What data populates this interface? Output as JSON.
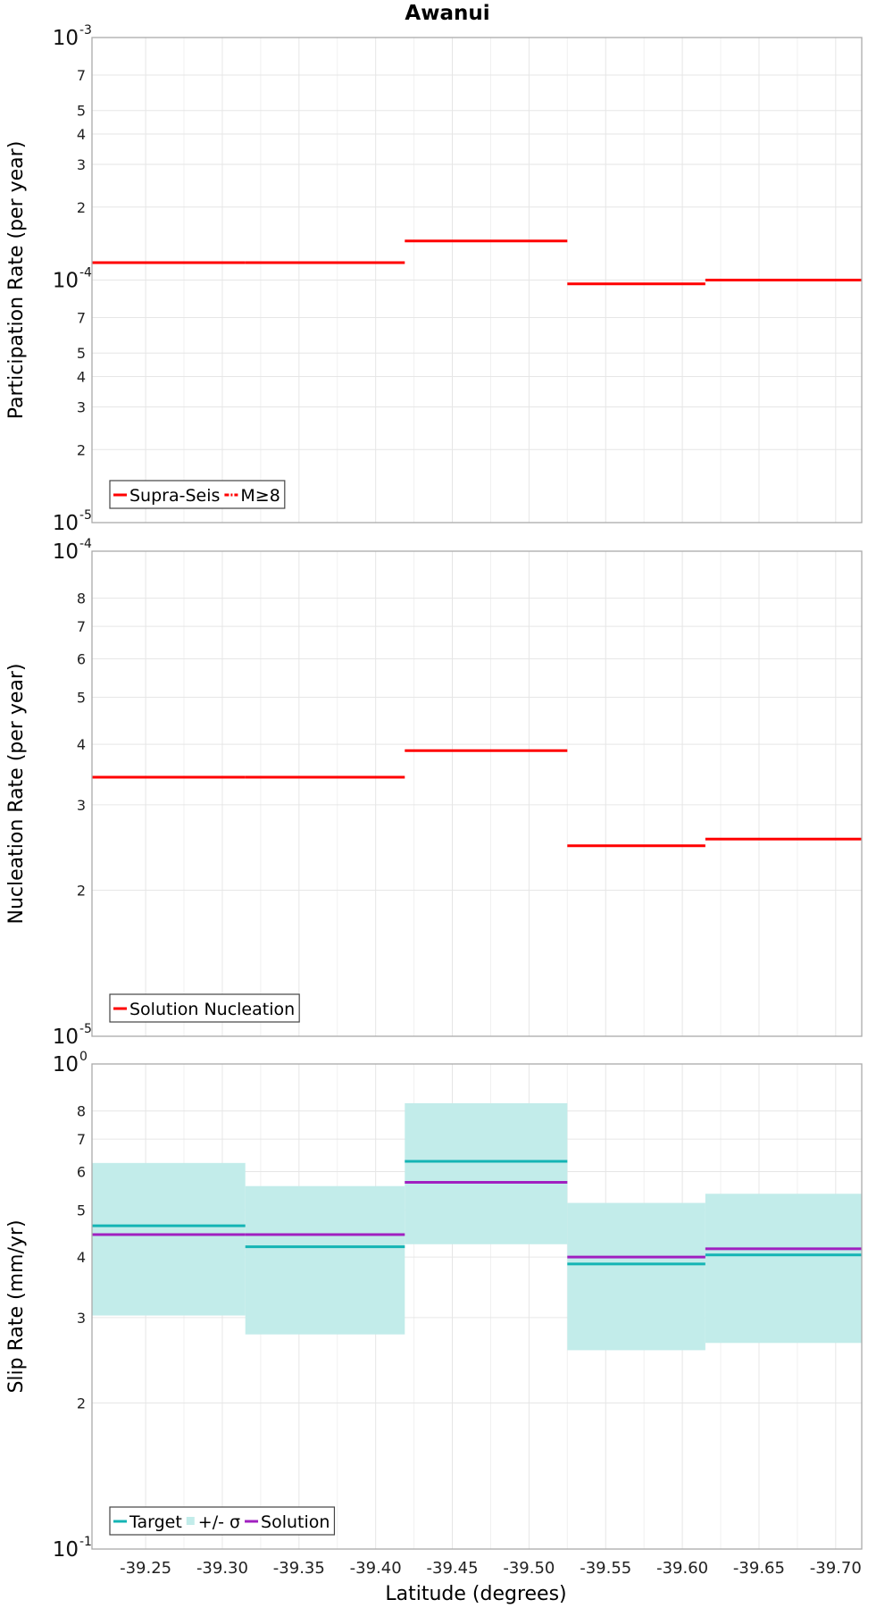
{
  "title": "Awanui",
  "xlabel": "Latitude (degrees)",
  "x_ticks": [
    "-39.25",
    "-39.30",
    "-39.35",
    "-39.40",
    "-39.45",
    "-39.50",
    "-39.55",
    "-39.60",
    "-39.65",
    "-39.70"
  ],
  "colors": {
    "red": "#ff0000",
    "target": "#14b4b4",
    "sigma_fill": "#c2ecea",
    "solution": "#a020c0",
    "grid": "#e6e6e6",
    "frame": "#aaaaaa"
  },
  "chart_data": [
    {
      "type": "line",
      "panel": "participation",
      "ylabel": "Participation Rate (per year)",
      "yscale": "log",
      "ylim": [
        1e-05,
        0.001
      ],
      "xlim": [
        -39.215,
        -39.717
      ],
      "y_major_ticks": [
        {
          "base": "10",
          "exp": "-3",
          "value": 0.001
        },
        {
          "base": "10",
          "exp": "-4",
          "value": 0.0001
        },
        {
          "base": "10",
          "exp": "-5",
          "value": 1e-05
        }
      ],
      "y_minor_ticks": [
        "7",
        "5",
        "4",
        "3",
        "2",
        "7",
        "5",
        "4",
        "3",
        "2"
      ],
      "y_minor_values": [
        0.0007,
        0.0005,
        0.0004,
        0.0003,
        0.0002,
        7e-05,
        5e-05,
        4e-05,
        3e-05,
        2e-05
      ],
      "legend": [
        "Supra-Seis",
        "M≥8"
      ],
      "series": [
        {
          "name": "Supra-Seis",
          "style": "solid",
          "segments": [
            {
              "x": [
                -39.215,
                -39.315
              ],
              "y": 0.000118
            },
            {
              "x": [
                -39.315,
                -39.419
              ],
              "y": 0.000118
            },
            {
              "x": [
                -39.419,
                -39.525
              ],
              "y": 0.000145
            },
            {
              "x": [
                -39.525,
                -39.615
              ],
              "y": 9.65e-05
            },
            {
              "x": [
                -39.615,
                -39.717
              ],
              "y": 0.0001
            }
          ]
        },
        {
          "name": "M≥8",
          "style": "dash-dot",
          "segments": []
        }
      ]
    },
    {
      "type": "line",
      "panel": "nucleation",
      "ylabel": "Nucleation Rate (per year)",
      "yscale": "log",
      "ylim": [
        1e-05,
        0.0001
      ],
      "xlim": [
        -39.215,
        -39.717
      ],
      "y_major_ticks": [
        {
          "base": "10",
          "exp": "-4",
          "value": 0.0001
        },
        {
          "base": "10",
          "exp": "-5",
          "value": 1e-05
        }
      ],
      "y_minor_ticks": [
        "8",
        "7",
        "6",
        "5",
        "4",
        "3",
        "2"
      ],
      "y_minor_values": [
        8e-05,
        7e-05,
        6e-05,
        5e-05,
        4e-05,
        3e-05,
        2e-05
      ],
      "legend": [
        "Solution Nucleation"
      ],
      "series": [
        {
          "name": "Solution Nucleation",
          "style": "solid",
          "segments": [
            {
              "x": [
                -39.215,
                -39.315
              ],
              "y": 3.42e-05
            },
            {
              "x": [
                -39.315,
                -39.419
              ],
              "y": 3.42e-05
            },
            {
              "x": [
                -39.419,
                -39.525
              ],
              "y": 3.88e-05
            },
            {
              "x": [
                -39.525,
                -39.615
              ],
              "y": 2.47e-05
            },
            {
              "x": [
                -39.615,
                -39.717
              ],
              "y": 2.55e-05
            }
          ]
        }
      ]
    },
    {
      "type": "line",
      "panel": "slip",
      "ylabel": "Slip Rate (mm/yr)",
      "yscale": "log",
      "ylim": [
        0.1,
        1
      ],
      "xlim": [
        -39.215,
        -39.717
      ],
      "y_major_ticks": [
        {
          "base": "10",
          "exp": "0",
          "value": 1
        },
        {
          "base": "10",
          "exp": "-1",
          "value": 0.1
        }
      ],
      "y_minor_ticks": [
        "8",
        "7",
        "6",
        "5",
        "4",
        "3",
        "2"
      ],
      "y_minor_values": [
        0.8,
        0.7,
        0.6,
        0.5,
        0.4,
        0.3,
        0.2
      ],
      "legend": [
        "Target",
        "+/- σ",
        "Solution"
      ],
      "bands": [
        {
          "x": [
            -39.215,
            -39.315
          ],
          "y_low": 0.303,
          "y_high": 0.625
        },
        {
          "x": [
            -39.315,
            -39.419
          ],
          "y_low": 0.277,
          "y_high": 0.56
        },
        {
          "x": [
            -39.419,
            -39.525
          ],
          "y_low": 0.425,
          "y_high": 0.83
        },
        {
          "x": [
            -39.525,
            -39.615
          ],
          "y_low": 0.257,
          "y_high": 0.517
        },
        {
          "x": [
            -39.615,
            -39.717
          ],
          "y_low": 0.266,
          "y_high": 0.54
        }
      ],
      "series": [
        {
          "name": "Target",
          "segments": [
            {
              "x": [
                -39.215,
                -39.315
              ],
              "y": 0.464
            },
            {
              "x": [
                -39.315,
                -39.419
              ],
              "y": 0.42
            },
            {
              "x": [
                -39.419,
                -39.525
              ],
              "y": 0.63
            },
            {
              "x": [
                -39.525,
                -39.615
              ],
              "y": 0.387
            },
            {
              "x": [
                -39.615,
                -39.717
              ],
              "y": 0.404
            }
          ]
        },
        {
          "name": "Solution",
          "segments": [
            {
              "x": [
                -39.215,
                -39.315
              ],
              "y": 0.445
            },
            {
              "x": [
                -39.315,
                -39.419
              ],
              "y": 0.445
            },
            {
              "x": [
                -39.419,
                -39.525
              ],
              "y": 0.57
            },
            {
              "x": [
                -39.525,
                -39.615
              ],
              "y": 0.4
            },
            {
              "x": [
                -39.615,
                -39.717
              ],
              "y": 0.416
            }
          ]
        }
      ]
    }
  ]
}
